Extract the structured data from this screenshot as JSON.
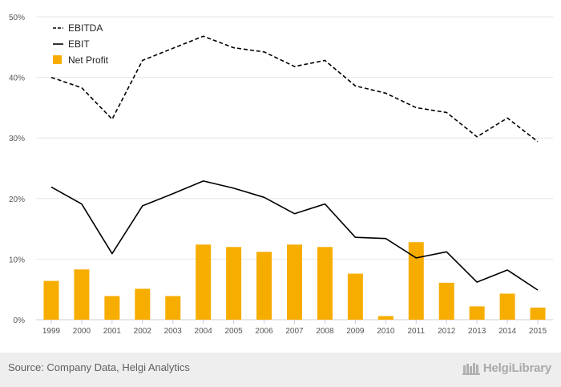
{
  "chart_data": {
    "type": "bar",
    "categories": [
      "1999",
      "2000",
      "2001",
      "2002",
      "2003",
      "2004",
      "2005",
      "2006",
      "2007",
      "2008",
      "2009",
      "2010",
      "2011",
      "2012",
      "2013",
      "2014",
      "2015"
    ],
    "series": [
      {
        "name": "EBITDA",
        "kind": "line",
        "style": "dashed",
        "color": "#000000",
        "values": [
          40.0,
          38.3,
          33.1,
          42.8,
          44.8,
          46.8,
          44.9,
          44.2,
          41.8,
          42.8,
          38.6,
          37.4,
          35.0,
          34.2,
          30.2,
          33.3,
          29.4
        ]
      },
      {
        "name": "EBIT",
        "kind": "line",
        "style": "solid",
        "color": "#000000",
        "values": [
          21.9,
          19.1,
          10.9,
          18.8,
          20.8,
          22.9,
          21.7,
          20.2,
          17.5,
          19.1,
          13.6,
          13.4,
          10.2,
          11.2,
          6.2,
          8.2,
          4.9
        ]
      },
      {
        "name": "Net Profit",
        "kind": "bar",
        "color": "#f7ad00",
        "values": [
          6.4,
          8.3,
          3.9,
          5.1,
          3.9,
          12.4,
          12.0,
          11.2,
          12.4,
          12.0,
          7.6,
          0.6,
          12.8,
          6.1,
          2.2,
          4.3,
          2.0
        ]
      }
    ],
    "ylim": [
      0,
      50
    ],
    "yticks": [
      "0%",
      "10%",
      "20%",
      "30%",
      "40%",
      "50%"
    ],
    "ytick_values": [
      0,
      10,
      20,
      30,
      40,
      50
    ],
    "grid": true,
    "legend_position": "top-left"
  },
  "footer": {
    "source": "Source: Company Data, Helgi Analytics",
    "brand": "HelgiLibrary"
  },
  "colors": {
    "bar": "#f7ad00",
    "grid": "#e6e6e6",
    "footer_bg": "#eeeeee"
  }
}
